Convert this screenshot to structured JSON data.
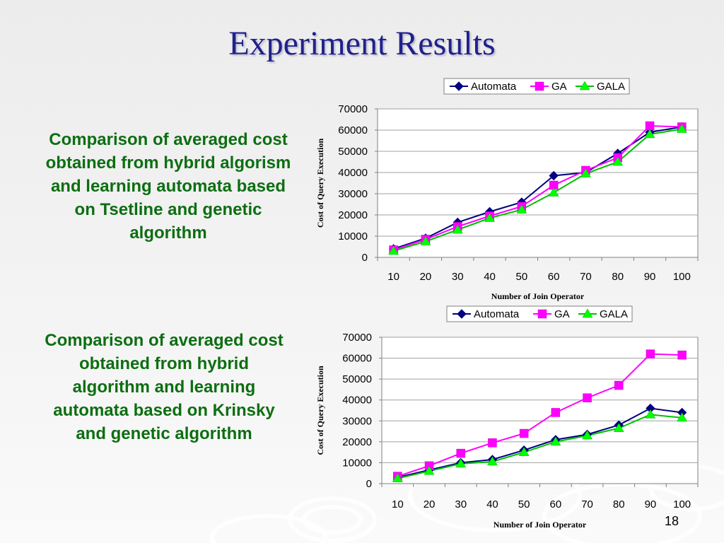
{
  "slide": {
    "title": "Experiment Results",
    "caption_top": "Comparison of averaged cost obtained from hybrid algorism and learning automata based on Tsetline and genetic algorithm",
    "caption_bottom": "Comparison of averaged cost obtained from hybrid algorithm and learning automata based on Krinsky and genetic algorithm",
    "slide_number": "18"
  },
  "colors": {
    "title": "#20208c",
    "caption": "#0d6e12",
    "automata": "#000080",
    "ga": "#ff00ff",
    "gala": "#00ff00"
  },
  "chart_data": [
    {
      "type": "line",
      "x": [
        10,
        20,
        30,
        40,
        50,
        60,
        70,
        80,
        90,
        100
      ],
      "series": [
        {
          "name": "Automata",
          "marker": "diamond",
          "values": [
            4000,
            9000,
            16500,
            21500,
            26000,
            38500,
            40000,
            49000,
            59000,
            61500
          ]
        },
        {
          "name": "GA",
          "marker": "square",
          "values": [
            3500,
            8500,
            14500,
            19500,
            24000,
            34000,
            41000,
            47000,
            62000,
            61500
          ]
        },
        {
          "name": "GALA",
          "marker": "triangle",
          "values": [
            3000,
            7500,
            13000,
            18500,
            22500,
            30500,
            39500,
            45000,
            58000,
            60500
          ]
        }
      ],
      "xlabel": "Number of Join Operator",
      "ylabel": "Cost of Query Execution",
      "ylim": [
        0,
        70000
      ],
      "yticks": [
        0,
        10000,
        20000,
        30000,
        40000,
        50000,
        60000,
        70000
      ],
      "xticks": [
        "10",
        "20",
        "30",
        "40",
        "50",
        "60",
        "70",
        "80",
        "90",
        "100"
      ],
      "grid": "horizontal",
      "legend": "top"
    },
    {
      "type": "line",
      "x": [
        10,
        20,
        30,
        40,
        50,
        60,
        70,
        80,
        90,
        100
      ],
      "series": [
        {
          "name": "Automata",
          "marker": "diamond",
          "values": [
            3000,
            6500,
            10000,
            11500,
            16000,
            21000,
            23500,
            28000,
            36000,
            34000
          ]
        },
        {
          "name": "GA",
          "marker": "square",
          "values": [
            3500,
            8500,
            14500,
            19500,
            24000,
            34000,
            41000,
            47000,
            62000,
            61500
          ]
        },
        {
          "name": "GALA",
          "marker": "triangle",
          "values": [
            2500,
            6000,
            9500,
            10500,
            15000,
            20000,
            23000,
            26500,
            33000,
            31500
          ]
        }
      ],
      "xlabel": "Number of Join Operator",
      "ylabel": "Cost of Query Execution",
      "ylim": [
        0,
        70000
      ],
      "yticks": [
        0,
        10000,
        20000,
        30000,
        40000,
        50000,
        60000,
        70000
      ],
      "xticks": [
        "10",
        "20",
        "30",
        "40",
        "50",
        "60",
        "70",
        "80",
        "90",
        "100"
      ],
      "grid": "horizontal",
      "legend": "top"
    }
  ]
}
